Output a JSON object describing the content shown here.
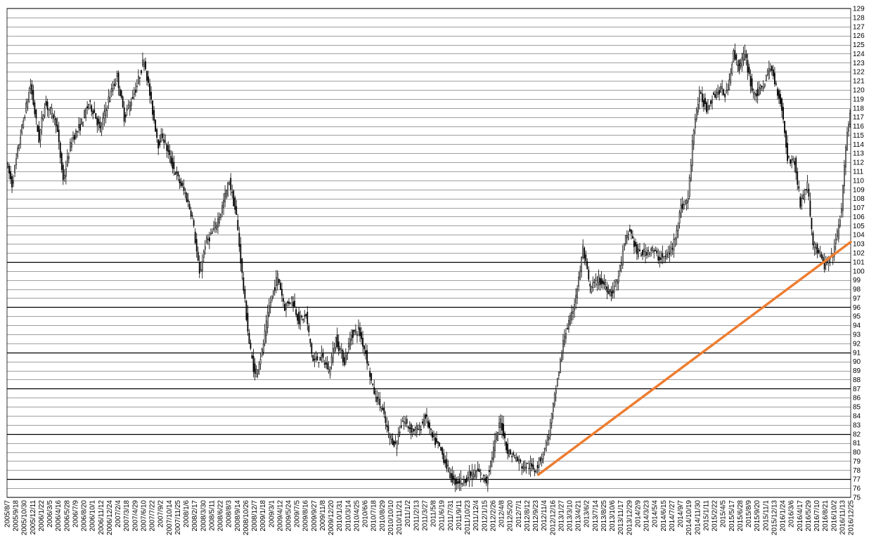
{
  "chart_data": {
    "type": "candlestick",
    "title": "",
    "xlabel": "",
    "ylabel": "",
    "ylim": [
      75,
      129
    ],
    "y_ticks": [
      75,
      76,
      77,
      78,
      79,
      80,
      81,
      82,
      83,
      84,
      85,
      86,
      87,
      88,
      89,
      90,
      91,
      92,
      93,
      94,
      95,
      96,
      97,
      98,
      99,
      100,
      101,
      102,
      103,
      104,
      105,
      106,
      107,
      108,
      109,
      110,
      111,
      112,
      113,
      114,
      115,
      116,
      117,
      118,
      119,
      120,
      121,
      122,
      123,
      124,
      125,
      126,
      127,
      128,
      129
    ],
    "y_axis_side": "right",
    "grid": true,
    "x_start": "2005/8/7",
    "x_end": "2016/12/25",
    "x_tick_labels": [
      "2005/8/7",
      "2005/9/18",
      "2005/10/30",
      "2005/12/11",
      "2006/1/22",
      "2006/3/5",
      "2006/4/16",
      "2006/5/28",
      "2006/7/9",
      "2006/8/20",
      "2006/10/1",
      "2006/11/12",
      "2006/12/24",
      "2007/2/4",
      "2007/3/18",
      "2007/4/29",
      "2007/6/10",
      "2007/7/22",
      "2007/9/2",
      "2007/10/14",
      "2007/11/25",
      "2008/1/6",
      "2008/2/17",
      "2008/3/30",
      "2008/5/11",
      "2008/6/22",
      "2008/8/3",
      "2008/9/14",
      "2008/10/26",
      "2008/12/7",
      "2009/1/18",
      "2009/3/1",
      "2009/4/12",
      "2009/5/24",
      "2009/7/5",
      "2009/8/16",
      "2009/9/27",
      "2009/11/8",
      "2009/12/20",
      "2010/1/31",
      "2010/3/14",
      "2010/4/25",
      "2010/6/6",
      "2010/7/18",
      "2010/8/29",
      "2010/10/10",
      "2010/11/21",
      "2011/1/2",
      "2011/2/13",
      "2011/3/27",
      "2011/5/8",
      "2011/6/19",
      "2011/7/31",
      "2011/9/11",
      "2011/10/23",
      "2011/12/4",
      "2012/1/15",
      "2012/2/26",
      "2012/4/8",
      "2012/5/20",
      "2012/7/1",
      "2012/8/12",
      "2012/9/23",
      "2012/11/4",
      "2012/12/16",
      "2013/1/27",
      "2013/3/10",
      "2013/4/21",
      "2013/6/2",
      "2013/7/14",
      "2013/8/25",
      "2013/10/6",
      "2013/11/17",
      "2013/12/29",
      "2014/2/9",
      "2014/3/23",
      "2014/5/4",
      "2014/6/15",
      "2014/7/27",
      "2014/9/7",
      "2014/10/19",
      "2014/11/30",
      "2015/1/11",
      "2015/2/22",
      "2015/4/5",
      "2015/5/17",
      "2015/6/28",
      "2015/8/9",
      "2015/9/20",
      "2015/11/1",
      "2015/12/13",
      "2016/1/24",
      "2016/3/6",
      "2016/4/17",
      "2016/5/29",
      "2016/7/10",
      "2016/8/21",
      "2016/10/2",
      "2016/11/13",
      "2016/12/25"
    ],
    "price_path": [
      [
        "2005/8/7",
        112
      ],
      [
        "2005/9/4",
        109.5
      ],
      [
        "2005/10/16",
        115
      ],
      [
        "2005/12/4",
        120.5
      ],
      [
        "2006/1/15",
        114.5
      ],
      [
        "2006/2/12",
        118.5
      ],
      [
        "2006/3/19",
        117.5
      ],
      [
        "2006/4/9",
        116.5
      ],
      [
        "2006/5/14",
        110
      ],
      [
        "2006/6/25",
        114.5
      ],
      [
        "2006/8/6",
        116
      ],
      [
        "2006/9/17",
        118.5
      ],
      [
        "2006/10/15",
        117.5
      ],
      [
        "2006/11/12",
        115.5
      ],
      [
        "2006/12/24",
        119
      ],
      [
        "2007/2/4",
        121.5
      ],
      [
        "2007/3/11",
        117
      ],
      [
        "2007/4/8",
        118.5
      ],
      [
        "2007/5/13",
        120.5
      ],
      [
        "2007/6/17",
        123.5
      ],
      [
        "2007/7/22",
        118.5
      ],
      [
        "2007/8/26",
        114
      ],
      [
        "2007/9/16",
        115
      ],
      [
        "2007/10/21",
        112.5
      ],
      [
        "2007/11/25",
        110.5
      ],
      [
        "2008/1/6",
        108.5
      ],
      [
        "2008/2/10",
        106
      ],
      [
        "2008/3/16",
        99.5
      ],
      [
        "2008/4/13",
        103
      ],
      [
        "2008/5/25",
        104.5
      ],
      [
        "2008/6/29",
        106.5
      ],
      [
        "2008/8/10",
        110
      ],
      [
        "2008/9/14",
        106
      ],
      [
        "2008/10/19",
        98
      ],
      [
        "2008/11/16",
        92
      ],
      [
        "2008/12/14",
        88.5
      ],
      [
        "2009/1/18",
        91
      ],
      [
        "2009/2/22",
        96
      ],
      [
        "2009/4/5",
        99.5
      ],
      [
        "2009/5/10",
        96
      ],
      [
        "2009/6/14",
        97
      ],
      [
        "2009/7/19",
        94.5
      ],
      [
        "2009/8/23",
        95
      ],
      [
        "2009/9/27",
        90
      ],
      [
        "2009/11/8",
        90.5
      ],
      [
        "2009/12/13",
        89
      ],
      [
        "2010/1/17",
        92.5
      ],
      [
        "2010/2/28",
        90
      ],
      [
        "2010/4/4",
        93
      ],
      [
        "2010/5/9",
        93.5
      ],
      [
        "2010/6/13",
        91
      ],
      [
        "2010/7/18",
        87
      ],
      [
        "2010/8/29",
        85
      ],
      [
        "2010/10/3",
        82
      ],
      [
        "2010/11/7",
        80.8
      ],
      [
        "2010/12/12",
        83.5
      ],
      [
        "2011/1/23",
        82.5
      ],
      [
        "2011/3/6",
        82.5
      ],
      [
        "2011/4/3",
        84
      ],
      [
        "2011/5/8",
        81.5
      ],
      [
        "2011/6/12",
        80.5
      ],
      [
        "2011/7/17",
        78.5
      ],
      [
        "2011/8/21",
        76.7
      ],
      [
        "2011/10/2",
        76.8
      ],
      [
        "2011/11/13",
        77.5
      ],
      [
        "2011/12/18",
        77.8
      ],
      [
        "2012/1/29",
        76.8
      ],
      [
        "2012/3/11",
        81
      ],
      [
        "2012/4/8",
        83.5
      ],
      [
        "2012/5/13",
        80
      ],
      [
        "2012/6/17",
        79.5
      ],
      [
        "2012/7/22",
        78.5
      ],
      [
        "2012/8/26",
        78.5
      ],
      [
        "2012/9/23",
        78
      ],
      [
        "2012/10/28",
        79.5
      ],
      [
        "2012/12/2",
        82
      ],
      [
        "2013/1/13",
        88
      ],
      [
        "2013/2/17",
        93
      ],
      [
        "2013/3/24",
        95
      ],
      [
        "2013/4/28",
        99
      ],
      [
        "2013/5/19",
        102.5
      ],
      [
        "2013/6/23",
        98
      ],
      [
        "2013/7/28",
        99
      ],
      [
        "2013/9/1",
        98.5
      ],
      [
        "2013/10/6",
        97.5
      ],
      [
        "2013/11/10",
        99.5
      ],
      [
        "2013/12/15",
        103.5
      ],
      [
        "2014/1/5",
        104.5
      ],
      [
        "2014/2/9",
        102
      ],
      [
        "2014/3/16",
        102
      ],
      [
        "2014/4/20",
        102.5
      ],
      [
        "2014/5/25",
        101.5
      ],
      [
        "2014/6/29",
        101.5
      ],
      [
        "2014/8/3",
        102.5
      ],
      [
        "2014/9/14",
        107
      ],
      [
        "2014/10/19",
        108
      ],
      [
        "2014/11/16",
        116
      ],
      [
        "2014/12/14",
        119.5
      ],
      [
        "2015/1/18",
        118
      ],
      [
        "2015/2/22",
        119.5
      ],
      [
        "2015/3/29",
        120
      ],
      [
        "2015/4/26",
        119.5
      ],
      [
        "2015/5/31",
        124
      ],
      [
        "2015/6/28",
        122.5
      ],
      [
        "2015/7/26",
        124
      ],
      [
        "2015/8/30",
        120
      ],
      [
        "2015/9/27",
        119.5
      ],
      [
        "2015/11/1",
        121
      ],
      [
        "2015/11/29",
        122.5
      ],
      [
        "2015/12/27",
        120.5
      ],
      [
        "2016/1/24",
        118
      ],
      [
        "2016/2/21",
        112.5
      ],
      [
        "2016/3/27",
        112
      ],
      [
        "2016/4/24",
        107.5
      ],
      [
        "2016/5/29",
        109.5
      ],
      [
        "2016/6/26",
        103
      ],
      [
        "2016/7/24",
        102
      ],
      [
        "2016/8/21",
        100.5
      ],
      [
        "2016/9/25",
        101.5
      ],
      [
        "2016/10/23",
        104
      ],
      [
        "2016/11/13",
        107
      ],
      [
        "2016/12/11",
        115.5
      ],
      [
        "2016/12/25",
        117.5
      ]
    ],
    "trend_line": {
      "start": [
        "2012/10/7",
        77.5
      ],
      "end": [
        "2016/12/25",
        103.2
      ],
      "color": "#ED7D31"
    },
    "colors": {
      "candle": "#000000",
      "grid": "#000000",
      "background": "#ffffff"
    }
  }
}
